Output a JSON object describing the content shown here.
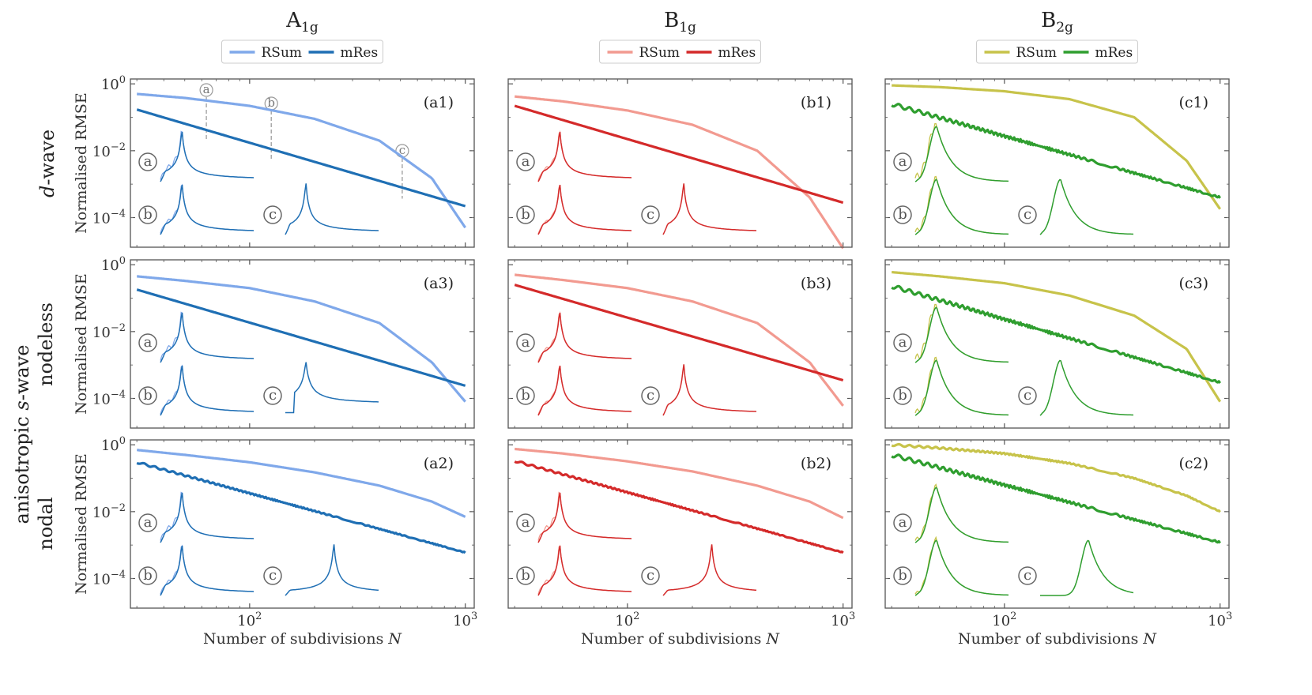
{
  "figure": {
    "columns": [
      {
        "title": "A",
        "sub": "1g",
        "colors": {
          "rsum": "#7fa8ea",
          "mres": "#1f6fb4"
        }
      },
      {
        "title": "B",
        "sub": "1g",
        "colors": {
          "rsum": "#f29a90",
          "mres": "#d42a2a"
        }
      },
      {
        "title": "B",
        "sub": "2g",
        "colors": {
          "rsum": "#c7c34a",
          "mres": "#2f9e2f"
        }
      }
    ],
    "legend": {
      "rsum": "RSum",
      "mres": "mRes"
    },
    "row_titles": [
      {
        "prefix": "",
        "italic": "d",
        "suffix": "-wave"
      },
      {
        "prefix": "anisotropic ",
        "italic": "s",
        "suffix": "-wave"
      },
      {
        "prefix": "",
        "italic": "",
        "suffix": "nodeless"
      },
      {
        "prefix": "",
        "italic": "",
        "suffix": "nodal"
      }
    ],
    "ylabel": "Normalised RMSE",
    "xlabel": {
      "text": "Number of subdivisions ",
      "italic": "N"
    },
    "x_tick_labels": [
      {
        "base": "10",
        "exp": "2"
      },
      {
        "base": "10",
        "exp": "3"
      }
    ],
    "y_tick_labels": [
      {
        "base": "10",
        "exp": "0"
      },
      {
        "base": "10",
        "exp": "−2"
      },
      {
        "base": "10",
        "exp": "−4"
      }
    ],
    "marker_letters": [
      "a",
      "b",
      "c"
    ]
  },
  "chart_data": {
    "type": "line",
    "xscale": "log",
    "yscale": "log",
    "xlim": [
      28,
      1100
    ],
    "ylim": [
      1.3e-05,
      1.4
    ],
    "xlabel": "Number of subdivisions N",
    "ylabel": "Normalised RMSE",
    "series_names": [
      "RSum",
      "mRes"
    ],
    "sampling_markers": {
      "a": 63,
      "b": 126,
      "c": 510
    },
    "panels": [
      {
        "label": "(a1)",
        "column": "A1g",
        "row": "d-wave",
        "rsum": {
          "x": [
            30,
            50,
            100,
            200,
            400,
            700,
            1000
          ],
          "y": [
            0.5,
            0.38,
            0.22,
            0.09,
            0.02,
            0.0015,
            5e-05
          ]
        },
        "mres": {
          "x": [
            30,
            1000
          ],
          "y": [
            0.17,
            0.00022
          ]
        }
      },
      {
        "label": "(b1)",
        "column": "B1g",
        "row": "d-wave",
        "rsum": {
          "x": [
            30,
            50,
            100,
            200,
            400,
            700,
            1000
          ],
          "y": [
            0.42,
            0.3,
            0.16,
            0.06,
            0.01,
            0.0004,
            1.2e-05
          ]
        },
        "mres": {
          "x": [
            30,
            1000
          ],
          "y": [
            0.22,
            0.00028
          ]
        }
      },
      {
        "label": "(c1)",
        "column": "B2g",
        "row": "d-wave",
        "rsum": {
          "x": [
            30,
            50,
            100,
            200,
            400,
            700,
            1000
          ],
          "y": [
            0.9,
            0.8,
            0.6,
            0.35,
            0.1,
            0.005,
            0.00018
          ]
        },
        "mres": {
          "x": [
            30,
            1000
          ],
          "y": [
            0.25,
            0.0004
          ]
        }
      },
      {
        "label": "(a3)",
        "column": "A1g",
        "row": "anisotropic s-wave nodeless",
        "rsum": {
          "x": [
            30,
            50,
            100,
            200,
            400,
            700,
            1000
          ],
          "y": [
            0.45,
            0.33,
            0.2,
            0.08,
            0.018,
            0.0012,
            8e-05
          ]
        },
        "mres": {
          "x": [
            30,
            1000
          ],
          "y": [
            0.18,
            0.00024
          ]
        }
      },
      {
        "label": "(b3)",
        "column": "B1g",
        "row": "anisotropic s-wave nodeless",
        "rsum": {
          "x": [
            30,
            50,
            100,
            200,
            400,
            700,
            1000
          ],
          "y": [
            0.5,
            0.35,
            0.2,
            0.08,
            0.018,
            0.0012,
            6e-05
          ]
        },
        "mres": {
          "x": [
            30,
            1000
          ],
          "y": [
            0.25,
            0.00035
          ]
        }
      },
      {
        "label": "(c3)",
        "column": "B2g",
        "row": "anisotropic s-wave nodeless",
        "rsum": {
          "x": [
            30,
            50,
            100,
            200,
            400,
            700,
            1000
          ],
          "y": [
            0.6,
            0.45,
            0.28,
            0.12,
            0.03,
            0.003,
            8e-05
          ]
        },
        "mres": {
          "x": [
            30,
            1000
          ],
          "y": [
            0.23,
            0.0003
          ]
        }
      },
      {
        "label": "(a2)",
        "column": "A1g",
        "row": "anisotropic s-wave nodal",
        "rsum": {
          "x": [
            30,
            50,
            100,
            200,
            400,
            700,
            1000
          ],
          "y": [
            0.7,
            0.5,
            0.3,
            0.15,
            0.06,
            0.02,
            0.007
          ]
        },
        "mres": {
          "x": [
            30,
            1000
          ],
          "y": [
            0.3,
            0.0006
          ]
        }
      },
      {
        "label": "(b2)",
        "column": "B1g",
        "row": "anisotropic s-wave nodal",
        "rsum": {
          "x": [
            30,
            50,
            100,
            200,
            400,
            700,
            1000
          ],
          "y": [
            0.75,
            0.55,
            0.32,
            0.16,
            0.06,
            0.02,
            0.0065
          ]
        },
        "mres": {
          "x": [
            30,
            1000
          ],
          "y": [
            0.33,
            0.0006
          ]
        }
      },
      {
        "label": "(c2)",
        "column": "B2g",
        "row": "anisotropic s-wave nodal",
        "rsum": {
          "x": [
            30,
            50,
            100,
            200,
            400,
            700,
            1000
          ],
          "y": [
            1.0,
            0.8,
            0.55,
            0.28,
            0.1,
            0.03,
            0.01
          ]
        },
        "mres": {
          "x": [
            30,
            1000
          ],
          "y": [
            0.5,
            0.0012
          ]
        }
      }
    ]
  }
}
